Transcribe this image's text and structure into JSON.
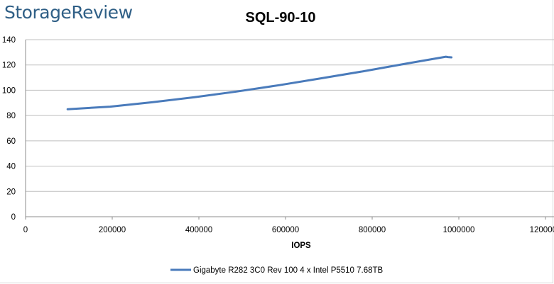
{
  "brand": {
    "name": "StorageReview"
  },
  "colors": {
    "series": "#4a7bbb",
    "grid": "#bfbfbf",
    "brand": "#2f5f86"
  },
  "chart_data": {
    "type": "line",
    "title": "SQL-90-10",
    "xlabel": "IOPS",
    "ylabel": "",
    "xlim": [
      0,
      1200000
    ],
    "ylim": [
      0,
      140
    ],
    "x_ticks": [
      0,
      200000,
      400000,
      600000,
      800000,
      1000000,
      1200000
    ],
    "y_ticks": [
      0,
      20,
      40,
      60,
      80,
      100,
      120,
      140
    ],
    "x_tick_labels": [
      "0",
      "200000",
      "400000",
      "600000",
      "800000",
      "1000000",
      "1200000"
    ],
    "y_tick_labels": [
      "0",
      "20",
      "40",
      "60",
      "80",
      "100",
      "120",
      "140"
    ],
    "grid": "horizontal",
    "legend_position": "bottom",
    "series": [
      {
        "name": "Gigabyte R282 3C0 Rev 100 4 x Intel P5510 7.68TB",
        "x": [
          97000,
          195000,
          292000,
          390000,
          488000,
          585000,
          683000,
          780000,
          878000,
          970000,
          975000,
          983000
        ],
        "y": [
          85,
          87,
          90.5,
          94.5,
          99,
          104,
          109.5,
          115,
          121,
          126.5,
          126.2,
          126
        ]
      }
    ]
  }
}
